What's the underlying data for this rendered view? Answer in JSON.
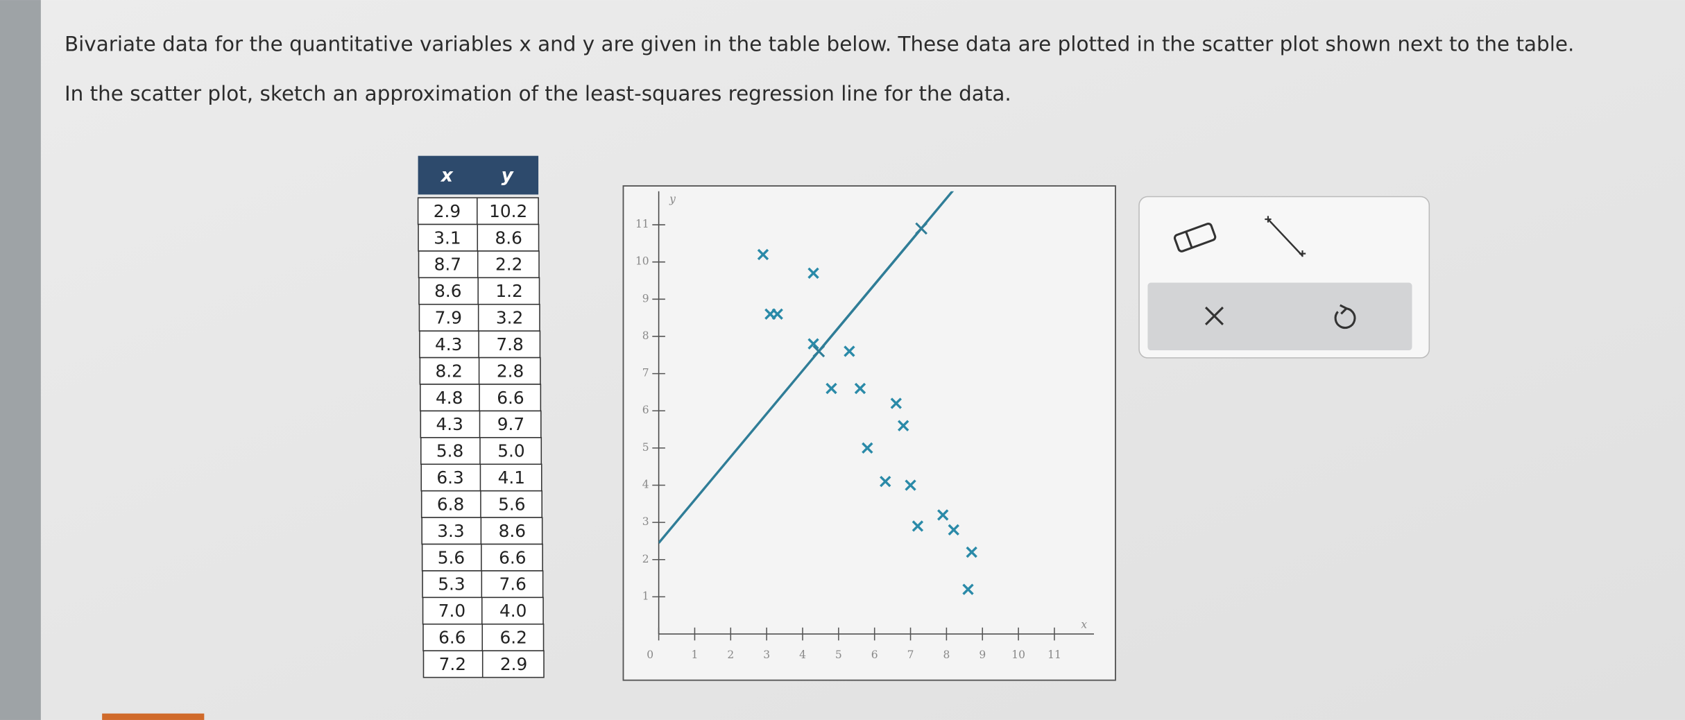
{
  "question": {
    "lines": [
      "Bivariate data for the quantitative variables x and y are given in the table below. These data are plotted in the scatter plot shown next to the table.",
      "In the scatter plot, sketch an approximation of the least-squares regression line for the data."
    ]
  },
  "table": {
    "header": [
      "x",
      "y"
    ],
    "rows": [
      [
        "2.9",
        "10.2"
      ],
      [
        "3.1",
        "8.6"
      ],
      [
        "8.7",
        "2.2"
      ],
      [
        "8.6",
        "1.2"
      ],
      [
        "7.9",
        "3.2"
      ],
      [
        "4.3",
        "7.8"
      ],
      [
        "8.2",
        "2.8"
      ],
      [
        "4.8",
        "6.6"
      ],
      [
        "4.3",
        "9.7"
      ],
      [
        "5.8",
        "5.0"
      ],
      [
        "6.3",
        "4.1"
      ],
      [
        "6.8",
        "5.6"
      ],
      [
        "3.3",
        "8.6"
      ],
      [
        "5.6",
        "6.6"
      ],
      [
        "5.3",
        "7.6"
      ],
      [
        "7.0",
        "4.0"
      ],
      [
        "6.6",
        "6.2"
      ],
      [
        "7.2",
        "2.9"
      ]
    ]
  },
  "chart_data": {
    "type": "scatter",
    "x_label": "x",
    "y_label": "y",
    "xlim": [
      0,
      12.1
    ],
    "ylim": [
      0,
      11.9
    ],
    "xticks": [
      0,
      1,
      2,
      3,
      4,
      5,
      6,
      7,
      8,
      9,
      10,
      11
    ],
    "yticks": [
      1,
      2,
      3,
      4,
      5,
      6,
      7,
      8,
      9,
      10,
      11
    ],
    "series": [
      {
        "color": "#2a8aa8",
        "x": [
          2.9,
          3.1,
          8.7,
          8.6,
          7.9,
          4.3,
          8.2,
          4.8,
          4.3,
          5.8,
          6.3,
          6.8,
          3.3,
          5.6,
          5.3,
          7.0,
          6.6,
          7.2
        ],
        "y": [
          10.2,
          8.6,
          2.2,
          1.2,
          3.2,
          7.8,
          2.8,
          6.6,
          9.7,
          5.0,
          4.1,
          5.6,
          8.6,
          6.6,
          7.6,
          4.0,
          6.2,
          2.9
        ]
      },
      {
        "type": "line",
        "color": "#2f7d97",
        "x": [
          4.45,
          7.3
        ],
        "y": [
          7.6,
          10.9
        ]
      }
    ]
  }
}
